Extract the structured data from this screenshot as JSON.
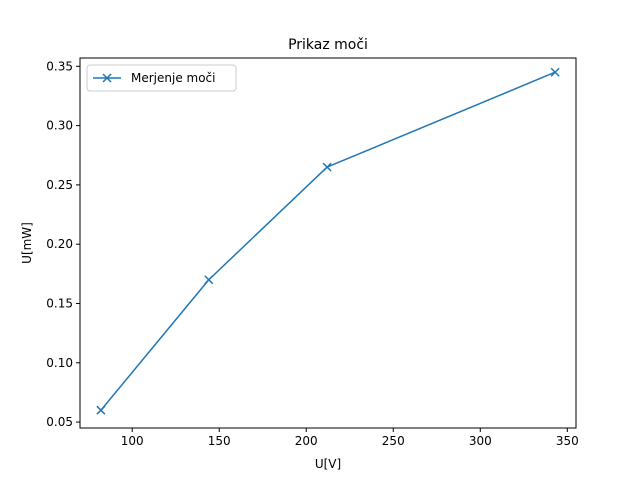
{
  "chart_data": {
    "type": "line",
    "title": "Prikaz moči",
    "xlabel": "U[V]",
    "ylabel": "U[mW]",
    "xlim": [
      70,
      355
    ],
    "ylim": [
      0.045,
      0.357
    ],
    "xticks": [
      100,
      150,
      200,
      250,
      300,
      350
    ],
    "yticks": [
      0.05,
      0.1,
      0.15,
      0.2,
      0.25,
      0.3,
      0.35
    ],
    "xtick_labels": [
      "100",
      "150",
      "200",
      "250",
      "300",
      "350"
    ],
    "ytick_labels": [
      "0.05",
      "0.10",
      "0.15",
      "0.20",
      "0.25",
      "0.30",
      "0.35"
    ],
    "grid": false,
    "legend_position": "upper-left",
    "series": [
      {
        "name": "Merjenje moči",
        "color": "#1f77b4",
        "marker": "x",
        "x": [
          82,
          144,
          212,
          343
        ],
        "y": [
          0.06,
          0.17,
          0.265,
          0.345
        ]
      }
    ]
  }
}
